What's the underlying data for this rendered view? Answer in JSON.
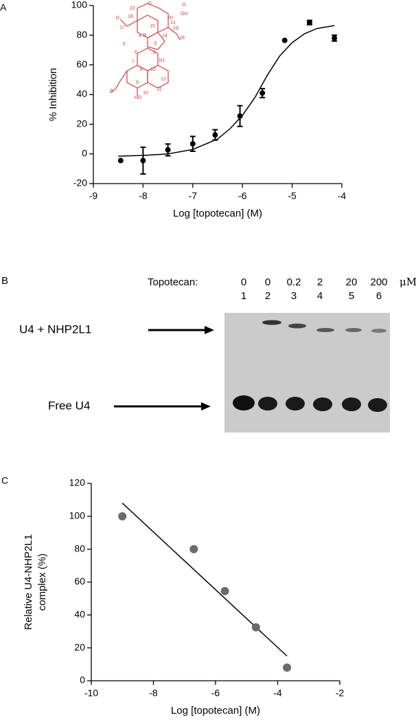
{
  "chart_data": [
    {
      "type": "scatter",
      "panel_label": "A",
      "x_label": "Log [topotecan] (M)",
      "y_label": "% Inhibition",
      "x": [
        -8.45,
        -8,
        -7.5,
        -7,
        -6.55,
        -6.05,
        -5.6,
        -5.15,
        -4.65,
        -4.15
      ],
      "values": [
        -4.5,
        -4.5,
        2.7,
        6.8,
        12.8,
        25.5,
        41,
        76.5,
        88.5,
        78
      ],
      "errors": [
        null,
        9,
        4,
        5,
        3.5,
        7,
        3,
        null,
        1.5,
        2
      ],
      "color": "#000000",
      "fit": {
        "x": [
          -8.5,
          -8,
          -7.5,
          -7,
          -6.5,
          -6.25,
          -6,
          -5.75,
          -5.5,
          -5.25,
          -5,
          -4.75,
          -4.5,
          -4.15
        ],
        "values": [
          -1.5,
          -1,
          0,
          3,
          10,
          17,
          26,
          38,
          53,
          66,
          75,
          81,
          84.5,
          86.5
        ],
        "color": "#000000"
      },
      "xlim": [
        -9,
        -4
      ],
      "xticks": [
        -9,
        -8,
        -7,
        -6,
        -5,
        -4
      ],
      "ylim": [
        -20,
        100
      ],
      "yticks": [
        -20,
        0,
        20,
        40,
        60,
        80,
        100
      ],
      "structure_labels": [
        "22",
        "O",
        "21",
        "O",
        "OH",
        "20",
        "16",
        "O",
        "17",
        "15",
        "19",
        "4",
        "N",
        "18",
        "14",
        "3",
        "5",
        "6",
        "2",
        "N1",
        "7",
        "8",
        "13",
        "12",
        "9",
        "11",
        "10",
        "HO",
        "N"
      ]
    },
    {
      "type": "scatter",
      "panel_label": "C",
      "x_label": "Log [topotecan] (M)",
      "y_label": [
        "Relative U4-NHP2L1",
        "complex (%)"
      ],
      "x": [
        -9,
        -6.7,
        -5.7,
        -4.7,
        -3.7
      ],
      "values": [
        100,
        80,
        54.5,
        32.5,
        8
      ],
      "color": "#6b6b6b",
      "fit": {
        "x": [
          -9,
          -3.7
        ],
        "values": [
          108,
          15
        ],
        "color": "#000000"
      },
      "xlim": [
        -10,
        -2
      ],
      "xticks": [
        -10,
        -8,
        -6,
        -4,
        -2
      ],
      "ylim": [
        0,
        120
      ],
      "yticks": [
        0,
        20,
        40,
        60,
        80,
        100,
        120
      ]
    }
  ],
  "gel": {
    "panel_label": "B",
    "drug_label": "Topotecan:",
    "concentrations": [
      "0",
      "0",
      "0.2",
      "2",
      "20",
      "200"
    ],
    "unit": "μM",
    "lanes": [
      "1",
      "2",
      "3",
      "4",
      "5",
      "6"
    ],
    "band_labels": [
      "U4 + NHP2L1",
      "Free U4"
    ]
  }
}
